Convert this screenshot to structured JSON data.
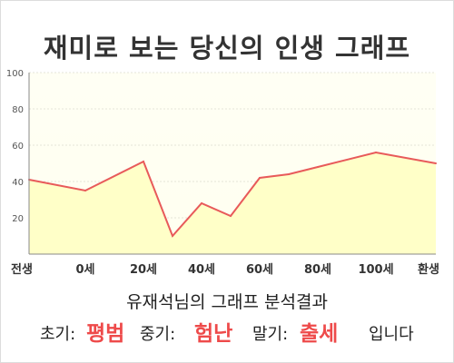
{
  "title": "재미로 보는 당신의 인생 그래프",
  "subtitle": "유재석님의 그래프 분석결과",
  "result": {
    "early_label": "초기:",
    "early_value": "평범",
    "mid_label": "중기:",
    "mid_value": "험난",
    "late_label": "말기:",
    "late_value": "출세",
    "suffix": "입니다"
  },
  "colors": {
    "line": "#e85a5a",
    "fill": "#ffffc8",
    "highlight": "#ee4a4a"
  },
  "chart_data": {
    "type": "area",
    "x_ticks": [
      "전생",
      "0세",
      "20세",
      "40세",
      "60세",
      "80세",
      "100세",
      "환생"
    ],
    "x": [
      "전생",
      "0세",
      "20세",
      "30세",
      "40세",
      "50세",
      "60세",
      "70세",
      "80세",
      "100세",
      "환생"
    ],
    "values": [
      41,
      35,
      51,
      10,
      28,
      21,
      42,
      44,
      48,
      56,
      50
    ],
    "y_ticks": [
      20,
      40,
      60,
      80,
      100
    ],
    "ylim": [
      0,
      100
    ],
    "grid": true
  }
}
